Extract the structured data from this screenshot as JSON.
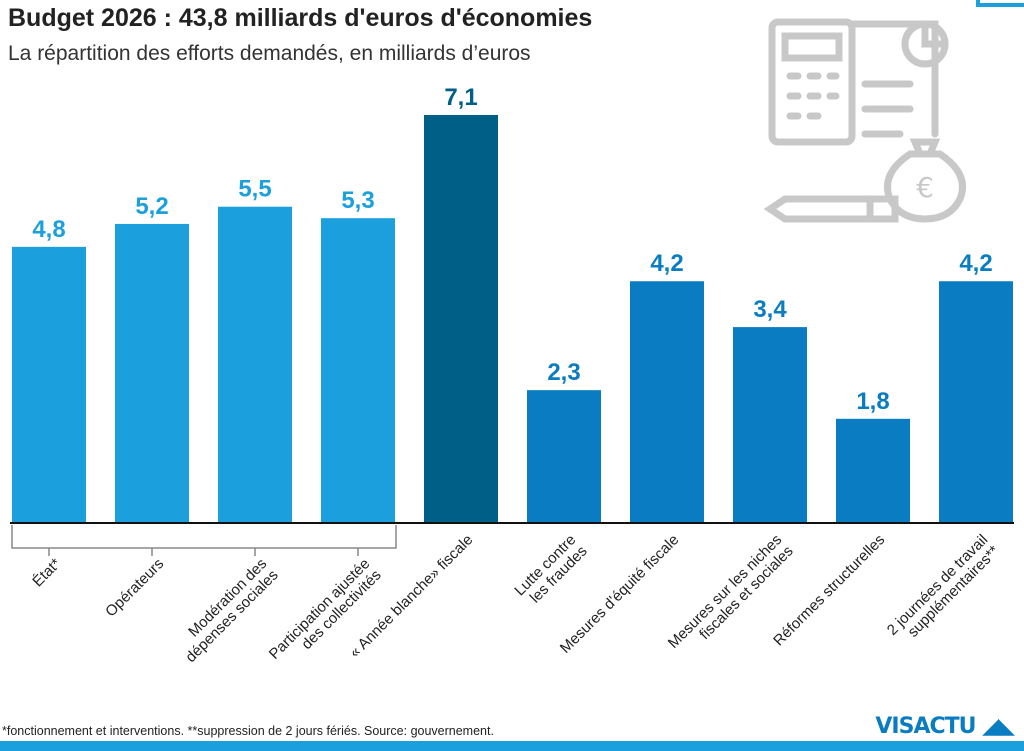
{
  "title": "Budget 2026 : 43,8 milliards d'euros d'économies",
  "subtitle": "La répartition des efforts demandés, en milliards d’euros",
  "footnote": "*fonctionnement et interventions. **suppression de 2 jours fériés. Source: gouvernement.",
  "logo": "VISACTU",
  "colors": {
    "light": "#1ba0dd",
    "dark": "#005f87",
    "mid": "#0a7cc1"
  },
  "chart_data": {
    "type": "bar",
    "categories": [
      "État*",
      "Opérateurs",
      "Modération des\ndépenses sociales",
      "Participation ajustée\ndes collectivités",
      "« Année blanche» fiscale",
      "Lutte contre\nles fraudes",
      "Mesures d'équité fiscale",
      "Mesures sur les niches\nfiscales et sociales",
      "Réformes structurelles",
      "2 journées de travail\nsupplémentaires**"
    ],
    "values": [
      4.8,
      5.2,
      5.5,
      5.3,
      7.1,
      2.3,
      4.2,
      3.4,
      1.8,
      4.2
    ],
    "value_labels": [
      "4,8",
      "5,2",
      "5,5",
      "5,3",
      "7,1",
      "2,3",
      "4,2",
      "3,4",
      "1,8",
      "4,2"
    ],
    "bar_colors": [
      "light",
      "light",
      "light",
      "light",
      "dark",
      "mid",
      "mid",
      "mid",
      "mid",
      "mid"
    ],
    "ylim": [
      0,
      7.1
    ],
    "grid": false,
    "icon": "calculator-document-money-bag-icon"
  }
}
